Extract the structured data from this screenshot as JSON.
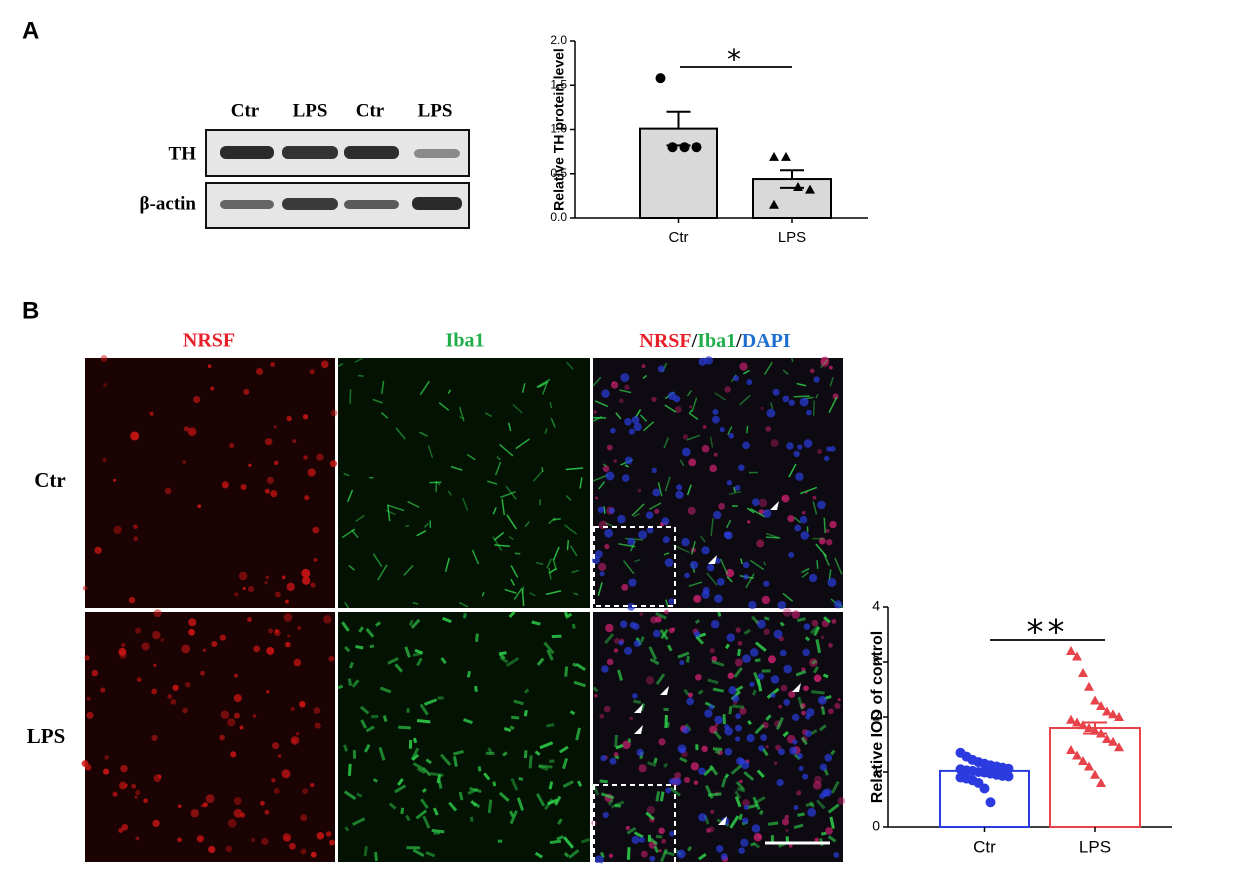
{
  "panel_a": {
    "label": "A",
    "blot": {
      "lanes": [
        "Ctr",
        "LPS",
        "Ctr",
        "LPS"
      ],
      "rows": [
        "TH",
        "β-actin"
      ]
    }
  },
  "panel_b": {
    "label": "B",
    "columns": [
      "NRSF",
      "Iba1"
    ],
    "merge_column": [
      "NRSF",
      "/",
      "Iba1",
      "/",
      "DAPI"
    ],
    "rows": [
      "Ctr",
      "LPS"
    ]
  },
  "chart_data": [
    {
      "type": "bar",
      "ylabel": "Relative TH protein level",
      "categories": [
        "Ctr",
        "LPS"
      ],
      "values": [
        1.01,
        0.44
      ],
      "errors": [
        0.19,
        0.1
      ],
      "points": [
        [
          1.58,
          0.8,
          0.8,
          0.8
        ],
        [
          0.69,
          0.69,
          0.35,
          0.32,
          0.15
        ]
      ],
      "markers": [
        "circle",
        "triangle"
      ],
      "bar_fill": [
        "#d9d9d9",
        "#d9d9d9"
      ],
      "bar_edge": [
        "#000000",
        "#000000"
      ],
      "point_colors": [
        "#000000",
        "#000000"
      ],
      "ylim": [
        0,
        2
      ],
      "yticks": [
        {
          "value": 0,
          "label": "0.0"
        },
        {
          "value": 0.5,
          "label": "0.5"
        },
        {
          "value": 1,
          "label": "1.0"
        },
        {
          "value": 1.5,
          "label": "1.5"
        },
        {
          "value": 2,
          "label": "2.0"
        }
      ],
      "significance": "*"
    },
    {
      "type": "bar",
      "ylabel": "Relative IOD of control",
      "categories": [
        "Ctr",
        "LPS"
      ],
      "values": [
        1.02,
        1.8
      ],
      "errors": [
        0.04,
        0.1
      ],
      "points": [
        [
          1.35,
          1.28,
          1.22,
          1.18,
          1.15,
          1.12,
          1.1,
          1.08,
          1.06,
          1.05,
          1.03,
          1.02,
          1.0,
          0.99,
          0.97,
          0.95,
          0.93,
          0.92,
          0.9,
          0.88,
          0.85,
          0.8,
          0.7,
          0.45
        ],
        [
          3.2,
          3.1,
          2.8,
          2.55,
          2.3,
          2.2,
          2.1,
          2.05,
          2.0,
          1.95,
          1.9,
          1.85,
          1.8,
          1.75,
          1.7,
          1.6,
          1.55,
          1.45,
          1.4,
          1.3,
          1.2,
          1.1,
          0.95,
          0.8
        ]
      ],
      "markers": [
        "circle",
        "triangle"
      ],
      "bar_fill": [
        "#ffffff",
        "#ffffff"
      ],
      "bar_edge": [
        "#2b3be0",
        "#e8424a"
      ],
      "point_colors": [
        "#2b3be0",
        "#e8424a"
      ],
      "ylim": [
        0,
        4
      ],
      "yticks": [
        0,
        1,
        2,
        3,
        4
      ],
      "significance": "**"
    }
  ]
}
